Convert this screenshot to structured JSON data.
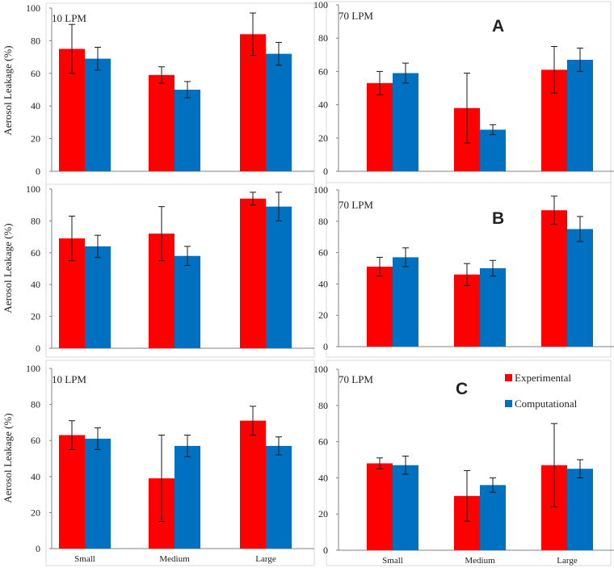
{
  "legend": {
    "experimental": "Experimental",
    "computational": "Computational"
  },
  "colors": {
    "experimental": "#ff0000",
    "computational": "#0070c0",
    "frame": "#d9d9d9",
    "axis": "#808080"
  },
  "chart_data": [
    {
      "type": "bar",
      "row": "A",
      "column": "left",
      "title": "",
      "annotation": "10 LPM",
      "panel_letter": "",
      "ylabel": "Aerosol Leakage (%)",
      "ylim": [
        0,
        100
      ],
      "yticks": [
        "0",
        "20",
        "40",
        "60",
        "80",
        "100"
      ],
      "categories": [
        "Small",
        "Medium",
        "Large"
      ],
      "show_category_labels": false,
      "series": [
        {
          "name": "Experimental",
          "values": [
            75,
            59,
            84
          ],
          "errors": [
            15,
            5,
            13
          ]
        },
        {
          "name": "Computational",
          "values": [
            69,
            50,
            72
          ],
          "errors": [
            7,
            5,
            7
          ]
        }
      ]
    },
    {
      "type": "bar",
      "row": "A",
      "column": "right",
      "title": "",
      "annotation": "70 LPM",
      "panel_letter": "A",
      "ylabel": "",
      "ylim": [
        0,
        100
      ],
      "yticks": [
        "0",
        "20",
        "40",
        "60",
        "80",
        "100"
      ],
      "categories": [
        "Small",
        "Medium",
        "Large"
      ],
      "show_category_labels": false,
      "series": [
        {
          "name": "Experimental",
          "values": [
            53,
            38,
            61
          ],
          "errors": [
            7,
            21,
            14
          ]
        },
        {
          "name": "Computational",
          "values": [
            59,
            25,
            67
          ],
          "errors": [
            6,
            3,
            7
          ]
        }
      ]
    },
    {
      "type": "bar",
      "row": "B",
      "column": "left",
      "title": "",
      "annotation": "",
      "panel_letter": "",
      "ylabel": "Aerosol Leakage (%)",
      "ylim": [
        0,
        100
      ],
      "yticks": [
        "0",
        "20",
        "40",
        "60",
        "80",
        "100"
      ],
      "categories": [
        "Small",
        "Medium",
        "Large"
      ],
      "show_category_labels": false,
      "series": [
        {
          "name": "Experimental",
          "values": [
            69,
            72,
            94
          ],
          "errors": [
            14,
            17,
            4
          ]
        },
        {
          "name": "Computational",
          "values": [
            64,
            58,
            89
          ],
          "errors": [
            7,
            6,
            9
          ]
        }
      ]
    },
    {
      "type": "bar",
      "row": "B",
      "column": "right",
      "title": "",
      "annotation": "70 LPM",
      "panel_letter": "B",
      "ylabel": "",
      "ylim": [
        0,
        100
      ],
      "yticks": [
        "0",
        "20",
        "40",
        "60",
        "80",
        "100"
      ],
      "categories": [
        "Small",
        "Medium",
        "Large"
      ],
      "show_category_labels": false,
      "series": [
        {
          "name": "Experimental",
          "values": [
            51,
            46,
            87
          ],
          "errors": [
            6,
            7,
            9
          ]
        },
        {
          "name": "Computational",
          "values": [
            57,
            50,
            75
          ],
          "errors": [
            6,
            5,
            8
          ]
        }
      ]
    },
    {
      "type": "bar",
      "row": "C",
      "column": "left",
      "title": "",
      "annotation": "10 LPM",
      "panel_letter": "",
      "ylabel": "Aerosol Leakage (%)",
      "ylim": [
        0,
        100
      ],
      "yticks": [
        "0",
        "20",
        "40",
        "60",
        "80",
        "100"
      ],
      "categories": [
        "Small",
        "Medium",
        "Large"
      ],
      "show_category_labels": true,
      "series": [
        {
          "name": "Experimental",
          "values": [
            63,
            39,
            71
          ],
          "errors": [
            8,
            24,
            8
          ]
        },
        {
          "name": "Computational",
          "values": [
            61,
            57,
            57
          ],
          "errors": [
            6,
            6,
            5
          ]
        }
      ]
    },
    {
      "type": "bar",
      "row": "C",
      "column": "right",
      "title": "",
      "annotation": "70 LPM",
      "panel_letter": "C",
      "ylabel": "",
      "ylim": [
        0,
        100
      ],
      "yticks": [
        "0",
        "20",
        "40",
        "60",
        "80",
        "100"
      ],
      "categories": [
        "Small",
        "Medium",
        "Large"
      ],
      "show_category_labels": true,
      "legend_position": "top-right",
      "series": [
        {
          "name": "Experimental",
          "values": [
            48,
            30,
            47
          ],
          "errors": [
            3,
            14,
            23
          ]
        },
        {
          "name": "Computational",
          "values": [
            47,
            36,
            45
          ],
          "errors": [
            5,
            4,
            5
          ]
        }
      ]
    }
  ]
}
